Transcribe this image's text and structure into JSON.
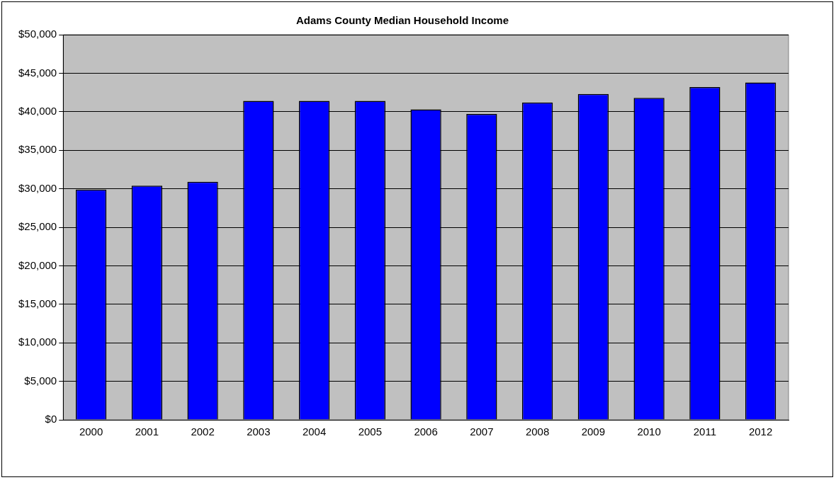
{
  "chart_data": {
    "type": "bar",
    "title": "Adams County Median Household Income",
    "categories": [
      "2000",
      "2001",
      "2002",
      "2003",
      "2004",
      "2005",
      "2006",
      "2007",
      "2008",
      "2009",
      "2010",
      "2011",
      "2012"
    ],
    "values": [
      29900,
      30400,
      30900,
      41400,
      41400,
      41400,
      40300,
      39700,
      41200,
      42300,
      41800,
      43200,
      43800
    ],
    "color": "#0000ff",
    "ylim": [
      0,
      50000
    ],
    "yticks": [
      {
        "value": 0,
        "label": "$0"
      },
      {
        "value": 5000,
        "label": "$5,000"
      },
      {
        "value": 10000,
        "label": "$10,000"
      },
      {
        "value": 15000,
        "label": "$15,000"
      },
      {
        "value": 20000,
        "label": "$20,000"
      },
      {
        "value": 25000,
        "label": "$25,000"
      },
      {
        "value": 30000,
        "label": "$30,000"
      },
      {
        "value": 35000,
        "label": "$35,000"
      },
      {
        "value": 40000,
        "label": "$40,000"
      },
      {
        "value": 45000,
        "label": "$45,000"
      },
      {
        "value": 50000,
        "label": "$50,000"
      }
    ],
    "grid": "y",
    "legend": false
  }
}
